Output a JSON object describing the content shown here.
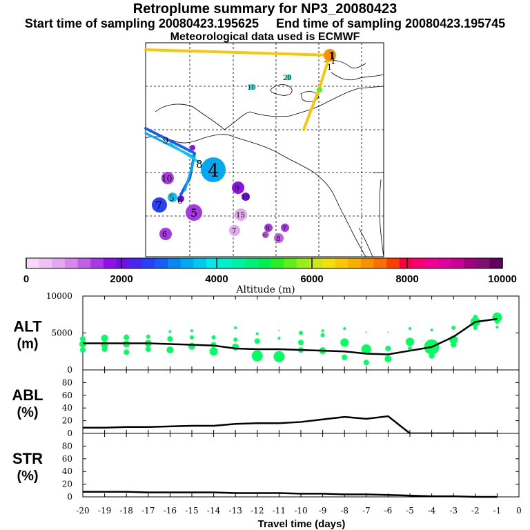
{
  "header": {
    "title": "Retroplume summary for NP3_20080423",
    "line2": "Start time of sampling 20080423.195625     End time of sampling 20080423.195745",
    "line3": "Meteorological data used is ECMWF"
  },
  "colors": {
    "scale": [
      "#f8d8f8",
      "#eec2f2",
      "#e2a8ee",
      "#d488ea",
      "#c060e6",
      "#a838e2",
      "#9010e8",
      "#7010e8",
      "#4828f0",
      "#2a40f8",
      "#1460f4",
      "#0888f0",
      "#04a8f0",
      "#00c8f0",
      "#00e8ec",
      "#00f0c8",
      "#00f0a4",
      "#00ee7c",
      "#00ee50",
      "#28ee28",
      "#60ee18",
      "#98ee18",
      "#cce818",
      "#f0e010",
      "#f8c808",
      "#f8b000",
      "#f89000",
      "#f87000",
      "#f84000",
      "#f80048",
      "#f80070",
      "#f00090",
      "#e000a0",
      "#c80098",
      "#a00080",
      "#801070",
      "#600060"
    ],
    "altitude_marker": "#00ff60",
    "plume_line": "#000000"
  },
  "map": {
    "yellow_labels": [
      "1",
      "1",
      "1"
    ],
    "cyan_labels": [
      "10",
      "20"
    ],
    "blue_labels": [
      "9",
      "8",
      "4"
    ],
    "circle_labels": [
      "4",
      "10",
      "9",
      "10",
      "7",
      "5",
      "6",
      "5",
      "15",
      "7",
      "6",
      "9",
      "7",
      "8",
      "6"
    ]
  },
  "colorbar": {
    "title": "Altitude (m)",
    "ticks": [
      "0",
      "2000",
      "4000",
      "6000",
      "8000",
      "10000"
    ],
    "range": [
      0,
      10000
    ],
    "steps": 37
  },
  "chart_data": [
    {
      "type": "line",
      "name": "ALT",
      "ylabel": "ALT",
      "yunit": "(m)",
      "yticks": [
        "10000",
        "5000",
        "0"
      ],
      "ylim": [
        0,
        10000
      ],
      "x": [
        -20,
        -19,
        -18,
        -17,
        -16,
        -15,
        -14,
        -13,
        -12,
        -11,
        -10,
        -9,
        -8,
        -7,
        -6,
        -5,
        -4,
        -3,
        -2,
        -1
      ],
      "values": [
        3600,
        3600,
        3600,
        3600,
        3500,
        3400,
        3300,
        2900,
        2800,
        2800,
        2700,
        2600,
        2500,
        2200,
        2100,
        2600,
        3100,
        4500,
        6500,
        6900
      ],
      "markers": [
        {
          "x": -20,
          "y": 4200,
          "r": 4
        },
        {
          "x": -20,
          "y": 3500,
          "r": 5
        },
        {
          "x": -20,
          "y": 2700,
          "r": 4
        },
        {
          "x": -19,
          "y": 4300,
          "r": 5
        },
        {
          "x": -19,
          "y": 3400,
          "r": 5
        },
        {
          "x": -19,
          "y": 2800,
          "r": 4
        },
        {
          "x": -18,
          "y": 4400,
          "r": 4
        },
        {
          "x": -18,
          "y": 3500,
          "r": 5
        },
        {
          "x": -18,
          "y": 2400,
          "r": 4
        },
        {
          "x": -17,
          "y": 4500,
          "r": 3
        },
        {
          "x": -17,
          "y": 3600,
          "r": 5
        },
        {
          "x": -17,
          "y": 2800,
          "r": 4
        },
        {
          "x": -16,
          "y": 5200,
          "r": 2
        },
        {
          "x": -16,
          "y": 4200,
          "r": 4
        },
        {
          "x": -16,
          "y": 2700,
          "r": 5
        },
        {
          "x": -15,
          "y": 5300,
          "r": 2
        },
        {
          "x": -15,
          "y": 4400,
          "r": 3
        },
        {
          "x": -15,
          "y": 3200,
          "r": 5
        },
        {
          "x": -14,
          "y": 4400,
          "r": 3
        },
        {
          "x": -14,
          "y": 3400,
          "r": 4
        },
        {
          "x": -14,
          "y": 2500,
          "r": 6
        },
        {
          "x": -13,
          "y": 5700,
          "r": 2
        },
        {
          "x": -13,
          "y": 4100,
          "r": 3
        },
        {
          "x": -13,
          "y": 3100,
          "r": 5
        },
        {
          "x": -12,
          "y": 4900,
          "r": 2
        },
        {
          "x": -12,
          "y": 3900,
          "r": 4
        },
        {
          "x": -12,
          "y": 1900,
          "r": 8
        },
        {
          "x": -11,
          "y": 5300,
          "r": 1
        },
        {
          "x": -11,
          "y": 4300,
          "r": 2
        },
        {
          "x": -11,
          "y": 1800,
          "r": 8
        },
        {
          "x": -10,
          "y": 5000,
          "r": 3
        },
        {
          "x": -10,
          "y": 3700,
          "r": 4
        },
        {
          "x": -10,
          "y": 2700,
          "r": 4
        },
        {
          "x": -9,
          "y": 5300,
          "r": 2
        },
        {
          "x": -9,
          "y": 4700,
          "r": 3
        },
        {
          "x": -9,
          "y": 2600,
          "r": 5
        },
        {
          "x": -8,
          "y": 5600,
          "r": 2
        },
        {
          "x": -8,
          "y": 3700,
          "r": 6
        },
        {
          "x": -8,
          "y": 1700,
          "r": 4
        },
        {
          "x": -7,
          "y": 5100,
          "r": 1
        },
        {
          "x": -7,
          "y": 2800,
          "r": 7
        },
        {
          "x": -7,
          "y": 1000,
          "r": 4
        },
        {
          "x": -6,
          "y": 5100,
          "r": 1
        },
        {
          "x": -6,
          "y": 2900,
          "r": 4
        },
        {
          "x": -6,
          "y": 1500,
          "r": 5
        },
        {
          "x": -5,
          "y": 5600,
          "r": 2
        },
        {
          "x": -5,
          "y": 3800,
          "r": 6
        },
        {
          "x": -5,
          "y": 2900,
          "r": 3
        },
        {
          "x": -4,
          "y": 5400,
          "r": 2
        },
        {
          "x": -4,
          "y": 3100,
          "r": 11
        },
        {
          "x": -4,
          "y": 1900,
          "r": 4
        },
        {
          "x": -3,
          "y": 5700,
          "r": 3
        },
        {
          "x": -3,
          "y": 4100,
          "r": 6
        },
        {
          "x": -3,
          "y": 3400,
          "r": 4
        },
        {
          "x": -2,
          "y": 7200,
          "r": 3
        },
        {
          "x": -2,
          "y": 6500,
          "r": 7
        },
        {
          "x": -2,
          "y": 5700,
          "r": 3
        },
        {
          "x": -1,
          "y": 7100,
          "r": 7
        },
        {
          "x": -1,
          "y": 6500,
          "r": 3
        },
        {
          "x": -1,
          "y": 5800,
          "r": 2
        }
      ]
    },
    {
      "type": "line",
      "name": "ABL",
      "ylabel": "ABL",
      "yunit": "(%)",
      "yticks": [
        "80",
        "60",
        "40",
        "20",
        "0"
      ],
      "ylim": [
        0,
        100
      ],
      "x": [
        -20,
        -19,
        -18,
        -17,
        -16,
        -15,
        -14,
        -13,
        -12,
        -11,
        -10,
        -9,
        -8,
        -7,
        -6,
        -5,
        -4,
        -3,
        -2,
        -1
      ],
      "values": [
        9,
        9,
        10,
        10,
        11,
        12,
        12,
        15,
        16,
        16,
        18,
        22,
        26,
        23,
        27,
        0,
        0,
        0,
        0,
        0
      ]
    },
    {
      "type": "line",
      "name": "STR",
      "ylabel": "STR",
      "yunit": "(%)",
      "yticks": [
        "80",
        "60",
        "40",
        "20",
        "0"
      ],
      "ylim": [
        0,
        100
      ],
      "x": [
        -20,
        -19,
        -18,
        -17,
        -16,
        -15,
        -14,
        -13,
        -12,
        -11,
        -10,
        -9,
        -8,
        -7,
        -6,
        -5,
        -4,
        -3,
        -2,
        -1
      ],
      "values": [
        8,
        8,
        8,
        7,
        7,
        7,
        7,
        6,
        6,
        6,
        5,
        5,
        4,
        4,
        3,
        2,
        1,
        1,
        0,
        0
      ]
    }
  ],
  "xaxis": {
    "label": "Travel time (days)",
    "ticks": [
      "-20",
      "-19",
      "-18",
      "-17",
      "-16",
      "-15",
      "-14",
      "-13",
      "-12",
      "-11",
      "-10",
      "-9",
      "-8",
      "-7",
      "-6",
      "-5",
      "-4",
      "-3",
      "-2",
      "-1",
      "0"
    ],
    "xlim": [
      -20,
      0
    ]
  }
}
